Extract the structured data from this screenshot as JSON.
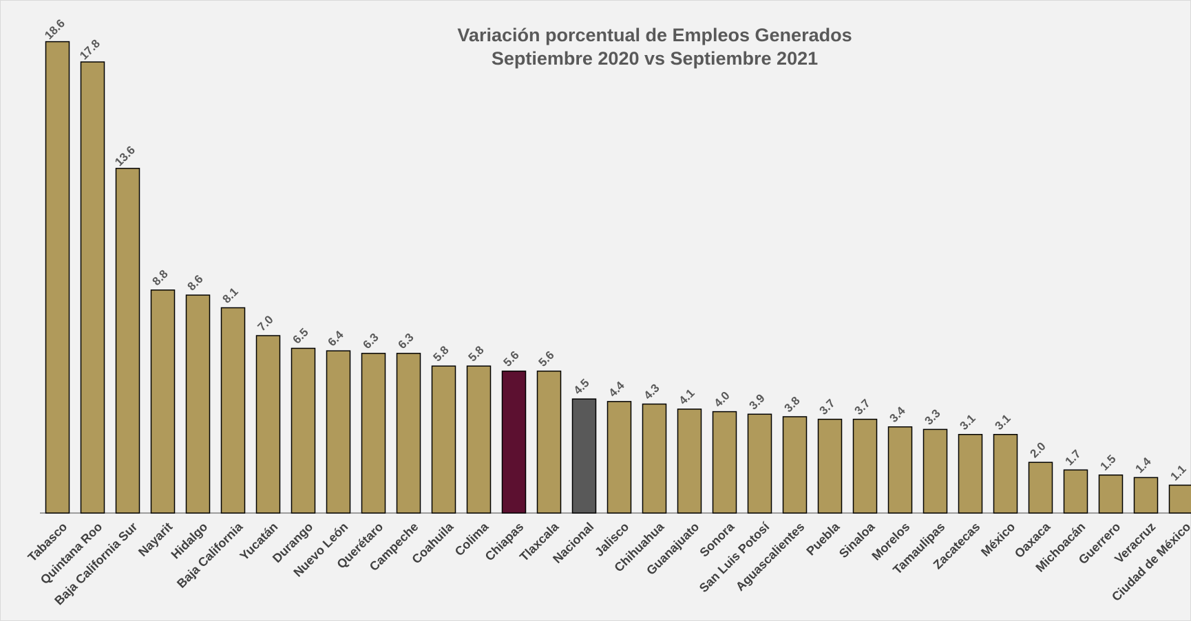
{
  "chart_data": {
    "type": "bar",
    "title": "Variación porcentual de Empleos Generados",
    "subtitle": "Septiembre 2020 vs Septiembre 2021",
    "categories": [
      "Tabasco",
      "Quintana Roo",
      "Baja California Sur",
      "Nayarit",
      "Hidalgo",
      "Baja California",
      "Yucatán",
      "Durango",
      "Nuevo León",
      "Querétaro",
      "Campeche",
      "Coahuila",
      "Colima",
      "Chiapas",
      "Tlaxcala",
      "Nacional",
      "Jalisco",
      "Chihuahua",
      "Guanajuato",
      "Sonora",
      "San Luis Potosí",
      "Aguascalientes",
      "Puebla",
      "Sinaloa",
      "Morelos",
      "Tamaulipas",
      "Zacatecas",
      "México",
      "Oaxaca",
      "Michoacán",
      "Guerrero",
      "Veracruz",
      "Ciudad de México"
    ],
    "values": [
      18.6,
      17.8,
      13.6,
      8.8,
      8.6,
      8.1,
      7.0,
      6.5,
      6.4,
      6.3,
      6.3,
      5.8,
      5.8,
      5.6,
      5.6,
      4.5,
      4.4,
      4.3,
      4.1,
      4.0,
      3.9,
      3.8,
      3.7,
      3.7,
      3.4,
      3.3,
      3.1,
      3.1,
      2.0,
      1.7,
      1.5,
      1.4,
      1.1
    ],
    "value_labels": [
      "18.6",
      "17.8",
      "13.6",
      "8.8",
      "8.6",
      "8.1",
      "7.0",
      "6.5",
      "6.4",
      "6.3",
      "6.3",
      "5.8",
      "5.8",
      "5.6",
      "5.6",
      "4.5",
      "4.4",
      "4.3",
      "4.1",
      "4.0",
      "3.9",
      "3.8",
      "3.7",
      "3.7",
      "3.4",
      "3.3",
      "3.1",
      "3.1",
      "2.0",
      "1.7",
      "1.5",
      "1.4",
      "1.1"
    ],
    "colors": [
      "#b09a5b",
      "#b09a5b",
      "#b09a5b",
      "#b09a5b",
      "#b09a5b",
      "#b09a5b",
      "#b09a5b",
      "#b09a5b",
      "#b09a5b",
      "#b09a5b",
      "#b09a5b",
      "#b09a5b",
      "#b09a5b",
      "#5c1030",
      "#b09a5b",
      "#595959",
      "#b09a5b",
      "#b09a5b",
      "#b09a5b",
      "#b09a5b",
      "#b09a5b",
      "#b09a5b",
      "#b09a5b",
      "#b09a5b",
      "#b09a5b",
      "#b09a5b",
      "#b09a5b",
      "#b09a5b",
      "#b09a5b",
      "#b09a5b",
      "#b09a5b",
      "#b09a5b",
      "#b09a5b"
    ],
    "ylim": [
      0,
      20
    ]
  }
}
